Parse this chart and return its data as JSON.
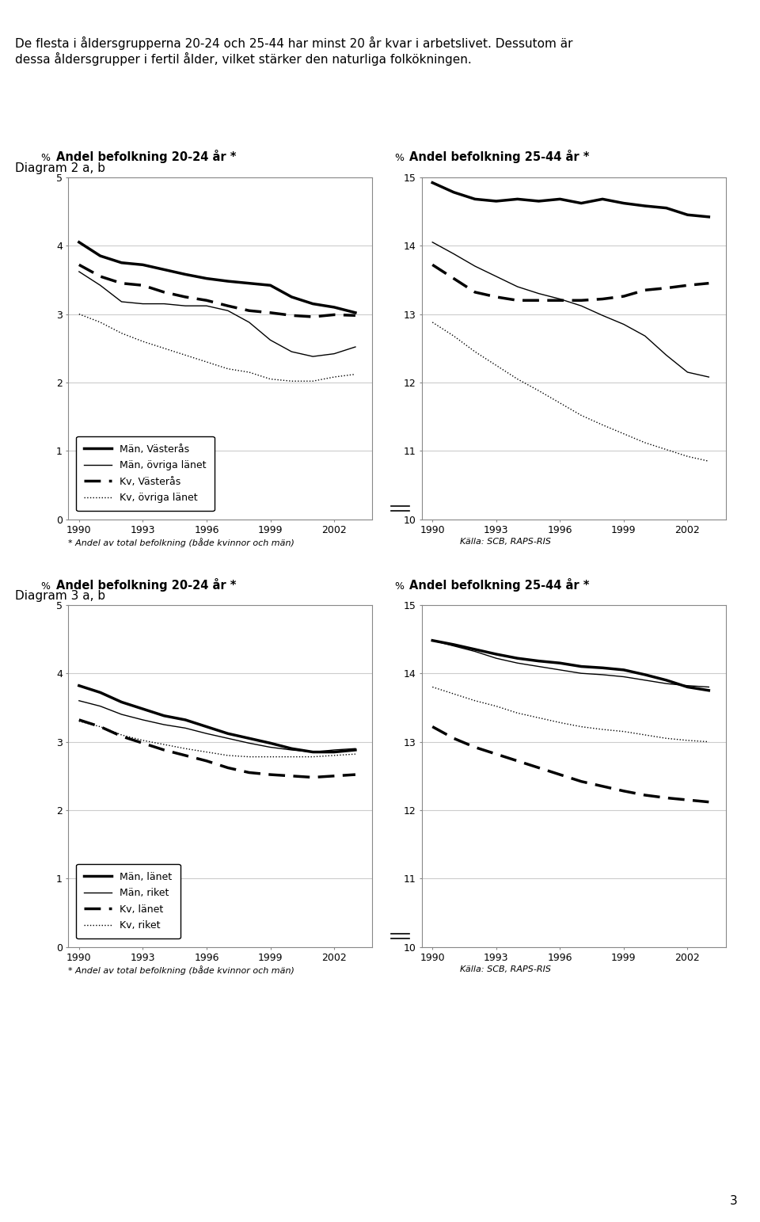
{
  "text_intro_line1": "De flesta i åldersgrupperna 20-24 och 25-44 har minst 20 år kvar i arbetslivet. Dessutom är",
  "text_intro_line2": "dessa åldersgrupper i fertil ålder, vilket stärker den naturliga folkökningen.",
  "diagram2_label": "Diagram 2 a, b",
  "diagram3_label": "Diagram 3 a, b",
  "years": [
    1990,
    1991,
    1992,
    1993,
    1994,
    1995,
    1996,
    1997,
    1998,
    1999,
    2000,
    2001,
    2002,
    2003
  ],
  "footnote": "* Andel av total befolkning (både kvinnor och män)",
  "source": "Källa: SCB, RAPS-RIS",
  "diag2a_title": "Andel befolkning 20-24 år *",
  "diag2b_title": "Andel befolkning 25-44 år *",
  "diag3a_title": "Andel befolkning 20-24 år *",
  "diag3b_title": "Andel befolkning 25-44 år *",
  "diag2a_ylim": [
    0,
    5
  ],
  "diag2b_ylim": [
    10,
    15
  ],
  "diag3a_ylim": [
    0,
    5
  ],
  "diag3b_ylim": [
    10,
    15
  ],
  "diag2a_yticks": [
    0,
    1,
    2,
    3,
    4,
    5
  ],
  "diag2b_yticks": [
    10,
    11,
    12,
    13,
    14,
    15
  ],
  "diag3a_yticks": [
    0,
    1,
    2,
    3,
    4,
    5
  ],
  "diag3b_yticks": [
    10,
    11,
    12,
    13,
    14,
    15
  ],
  "xticks": [
    1990,
    1993,
    1996,
    1999,
    2002
  ],
  "diag2a_man_vasteras": [
    4.05,
    3.85,
    3.75,
    3.72,
    3.65,
    3.58,
    3.52,
    3.48,
    3.45,
    3.42,
    3.25,
    3.15,
    3.1,
    3.02
  ],
  "diag2a_man_ovriga": [
    3.62,
    3.42,
    3.18,
    3.15,
    3.15,
    3.12,
    3.12,
    3.05,
    2.88,
    2.62,
    2.45,
    2.38,
    2.42,
    2.52
  ],
  "diag2a_kv_vasteras": [
    3.72,
    3.55,
    3.45,
    3.42,
    3.32,
    3.25,
    3.2,
    3.12,
    3.05,
    3.02,
    2.98,
    2.96,
    2.99,
    2.98
  ],
  "diag2a_kv_ovriga": [
    3.0,
    2.88,
    2.72,
    2.6,
    2.5,
    2.4,
    2.3,
    2.2,
    2.15,
    2.05,
    2.02,
    2.02,
    2.08,
    2.12
  ],
  "diag2b_man_vasteras": [
    14.92,
    14.78,
    14.68,
    14.65,
    14.68,
    14.65,
    14.68,
    14.62,
    14.68,
    14.62,
    14.58,
    14.55,
    14.45,
    14.42
  ],
  "diag2b_man_ovriga": [
    14.05,
    13.88,
    13.7,
    13.55,
    13.4,
    13.3,
    13.22,
    13.12,
    12.98,
    12.85,
    12.68,
    12.4,
    12.15,
    12.08
  ],
  "diag2b_kv_vasteras": [
    13.72,
    13.52,
    13.32,
    13.25,
    13.2,
    13.2,
    13.2,
    13.2,
    13.22,
    13.26,
    13.35,
    13.38,
    13.42,
    13.45
  ],
  "diag2b_kv_ovriga": [
    12.88,
    12.68,
    12.45,
    12.25,
    12.05,
    11.88,
    11.7,
    11.52,
    11.38,
    11.25,
    11.12,
    11.02,
    10.92,
    10.85
  ],
  "diag3a_man_lanet": [
    3.82,
    3.72,
    3.58,
    3.48,
    3.38,
    3.32,
    3.22,
    3.12,
    3.05,
    2.98,
    2.9,
    2.85,
    2.85,
    2.88
  ],
  "diag3a_man_riket": [
    3.6,
    3.52,
    3.4,
    3.32,
    3.25,
    3.2,
    3.12,
    3.05,
    2.98,
    2.92,
    2.88,
    2.85,
    2.88,
    2.9
  ],
  "diag3a_kv_lanet": [
    3.32,
    3.22,
    3.08,
    2.98,
    2.88,
    2.8,
    2.72,
    2.62,
    2.55,
    2.52,
    2.5,
    2.48,
    2.5,
    2.52
  ],
  "diag3a_kv_riket": [
    3.3,
    3.22,
    3.1,
    3.02,
    2.96,
    2.9,
    2.85,
    2.8,
    2.78,
    2.78,
    2.78,
    2.78,
    2.8,
    2.82
  ],
  "diag3b_man_lanet": [
    14.48,
    14.42,
    14.35,
    14.28,
    14.22,
    14.18,
    14.15,
    14.1,
    14.08,
    14.05,
    13.98,
    13.9,
    13.8,
    13.75
  ],
  "diag3b_man_riket": [
    14.48,
    14.4,
    14.32,
    14.22,
    14.15,
    14.1,
    14.05,
    14.0,
    13.98,
    13.95,
    13.9,
    13.85,
    13.82,
    13.8
  ],
  "diag3b_kv_lanet": [
    13.22,
    13.05,
    12.92,
    12.82,
    12.72,
    12.62,
    12.52,
    12.42,
    12.35,
    12.28,
    12.22,
    12.18,
    12.15,
    12.12
  ],
  "diag3b_kv_riket": [
    13.8,
    13.7,
    13.6,
    13.52,
    13.42,
    13.35,
    13.28,
    13.22,
    13.18,
    13.15,
    13.1,
    13.05,
    13.02,
    13.0
  ],
  "legend2a": [
    "Män, Västerås",
    "Män, övriga länet",
    "Kv, Västerås",
    "Kv, övriga länet"
  ],
  "legend3a": [
    "Män, länet",
    "Män, riket",
    "Kv, länet",
    "Kv, riket"
  ]
}
